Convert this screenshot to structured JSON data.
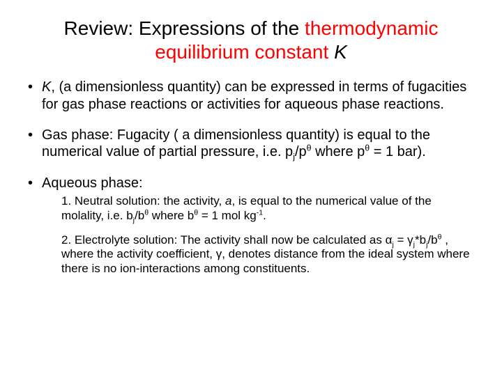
{
  "title": {
    "prefix": "Review: Expressions of the ",
    "highlight": "thermodynamic equilibrium constant",
    "suffix_space": " ",
    "suffix_symbol": "K",
    "colors": {
      "highlight": "#ff0000",
      "body_text": "#000000",
      "background": "#ffffff"
    },
    "fontsize_title": 28,
    "fontsize_body": 20,
    "fontsize_sub": 17
  },
  "bullets": {
    "b1": {
      "sym": "K",
      "rest": ", (a dimensionless quantity) can be expressed in terms of fugacities for gas phase reactions or activities for aqueous phase reactions."
    },
    "b2": {
      "lead": "Gas phase: Fugacity ( a dimensionless quantity) is equal to the numerical value of partial pressure, i.e. p",
      "sub1": "j",
      "mid1": "/p",
      "sup1": "θ",
      "mid2": " where p",
      "sup2": "θ",
      "tail": " = 1 bar)."
    },
    "b3": {
      "lead": "Aqueous phase:",
      "n1": {
        "lead": "1.  Neutral solution: the activity, ",
        "sym": "a",
        "mid1": ",  is equal to the numerical value of the molality, i.e. b",
        "sub1": "j",
        "mid2": "/b",
        "sup1": "θ",
        "mid3": " where b",
        "sup2": "θ",
        "mid4": " = 1 mol kg",
        "sup3": "-1",
        "tail": "."
      },
      "n2": {
        "lead": "2. Electrolyte solution: The activity shall now be calculated as α",
        "sub1": "j",
        "mid1": " = γ",
        "sub2": "j",
        "mid2": "*b",
        "sub3": "j",
        "mid3": "/b",
        "sup1": "θ",
        "tail": " , where the activity coefficient, γ, denotes distance from the ideal system where there is no ion-interactions among constituents."
      }
    }
  }
}
